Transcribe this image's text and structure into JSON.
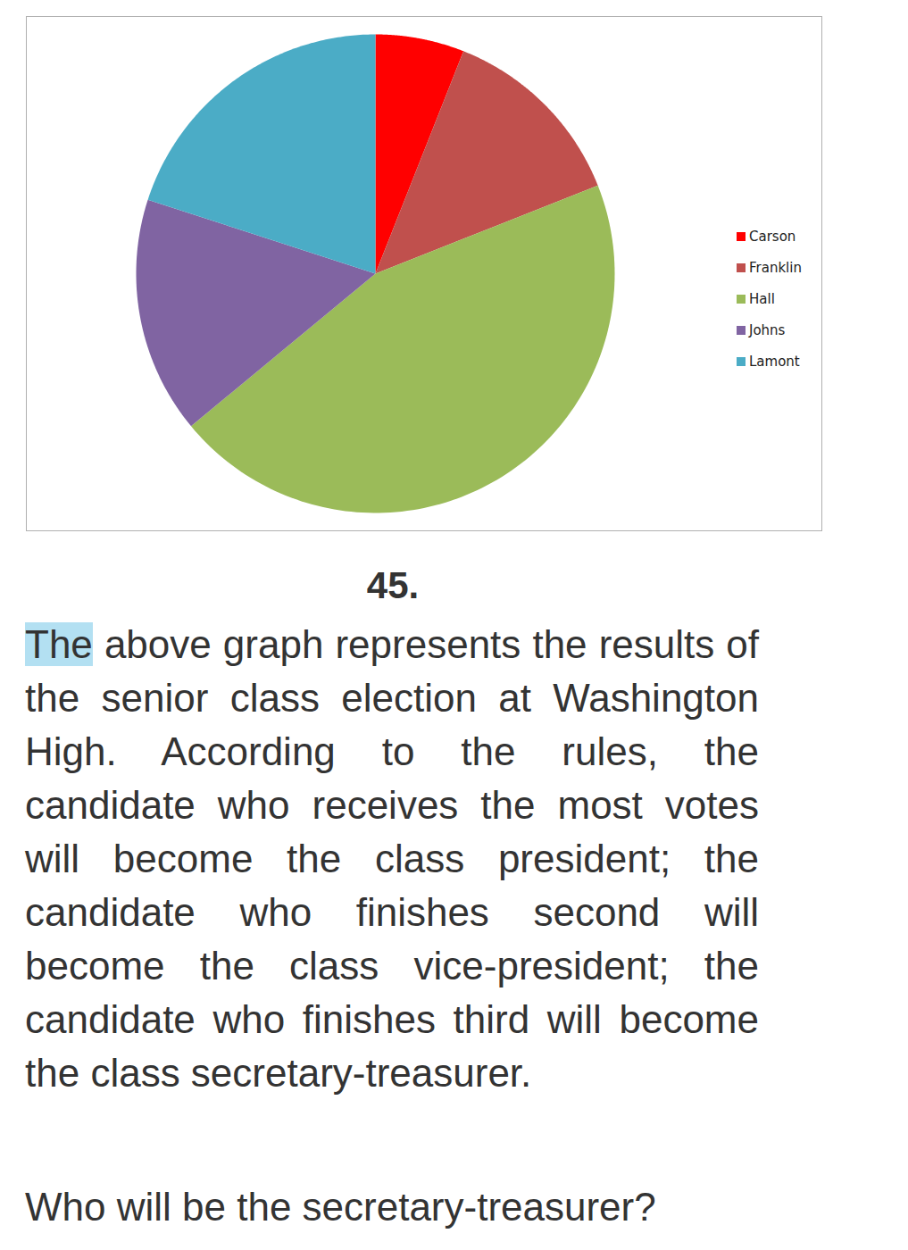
{
  "chart_data": {
    "type": "pie",
    "categories": [
      "Carson",
      "Franklin",
      "Hall",
      "Johns",
      "Lamont"
    ],
    "values": [
      6,
      13,
      45,
      16,
      20
    ],
    "colors": [
      "#ff0000",
      "#c0504d",
      "#9bbb59",
      "#8064a2",
      "#4bacc6"
    ],
    "legend": "right",
    "tick_labels": false,
    "annotations": [
      "45.",
      "The above graph represents the results of the senior class election at Washington High. According to the rules, the candidate who receives the most votes will become the class president; the candidate who finishes second will become the class vice-president; the candidate who finishes third will become the class secretary-treasurer.",
      "Who will be the secretary-treasurer?"
    ]
  }
}
